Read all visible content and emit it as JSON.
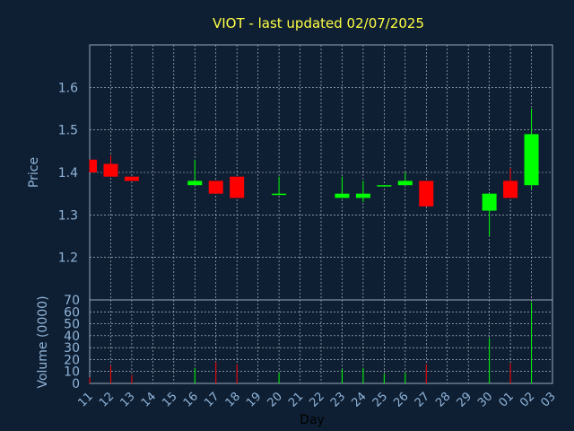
{
  "chart_data": [
    {
      "type": "candlestick",
      "title": "VIOT - last updated 02/07/2025",
      "xlabel": "Day",
      "ylabel": "Price",
      "ylim": [
        1.1,
        1.7
      ],
      "yticks": [
        "1.2",
        "1.3",
        "1.4",
        "1.5",
        "1.6"
      ],
      "grid": true,
      "candles": [
        {
          "day": "11",
          "open": 1.43,
          "high": 1.43,
          "low": 1.4,
          "close": 1.4
        },
        {
          "day": "12",
          "open": 1.42,
          "high": 1.44,
          "low": 1.39,
          "close": 1.39
        },
        {
          "day": "13",
          "open": 1.39,
          "high": 1.39,
          "low": 1.38,
          "close": 1.38
        },
        {
          "day": "16",
          "open": 1.37,
          "high": 1.43,
          "low": 1.37,
          "close": 1.38
        },
        {
          "day": "17",
          "open": 1.38,
          "high": 1.38,
          "low": 1.35,
          "close": 1.35
        },
        {
          "day": "18",
          "open": 1.39,
          "high": 1.39,
          "low": 1.34,
          "close": 1.34
        },
        {
          "day": "20",
          "open": 1.35,
          "high": 1.39,
          "low": 1.35,
          "close": 1.35
        },
        {
          "day": "23",
          "open": 1.34,
          "high": 1.39,
          "low": 1.34,
          "close": 1.35
        },
        {
          "day": "24",
          "open": 1.34,
          "high": 1.38,
          "low": 1.33,
          "close": 1.35
        },
        {
          "day": "25",
          "open": 1.37,
          "high": 1.37,
          "low": 1.37,
          "close": 1.37
        },
        {
          "day": "26",
          "open": 1.37,
          "high": 1.4,
          "low": 1.37,
          "close": 1.38
        },
        {
          "day": "27",
          "open": 1.38,
          "high": 1.38,
          "low": 1.32,
          "close": 1.32
        },
        {
          "day": "30",
          "open": 1.31,
          "high": 1.35,
          "low": 1.25,
          "close": 1.35
        },
        {
          "day": "01",
          "open": 1.38,
          "high": 1.41,
          "low": 1.34,
          "close": 1.34
        },
        {
          "day": "02",
          "open": 1.37,
          "high": 1.55,
          "low": 1.36,
          "close": 1.49
        }
      ]
    },
    {
      "type": "bar",
      "ylabel": "Volume (0000)",
      "ylim": [
        0,
        70
      ],
      "yticks": [
        "0",
        "10",
        "20",
        "30",
        "40",
        "50",
        "60",
        "70"
      ],
      "xticks": [
        "11",
        "12",
        "13",
        "14",
        "15",
        "16",
        "17",
        "18",
        "19",
        "20",
        "21",
        "22",
        "23",
        "24",
        "25",
        "26",
        "27",
        "28",
        "29",
        "30",
        "01",
        "02",
        "03"
      ],
      "bars": [
        {
          "day": "11",
          "value": 5,
          "direction": "down"
        },
        {
          "day": "12",
          "value": 15,
          "direction": "down"
        },
        {
          "day": "13",
          "value": 7,
          "direction": "down"
        },
        {
          "day": "16",
          "value": 13,
          "direction": "up"
        },
        {
          "day": "17",
          "value": 18,
          "direction": "down"
        },
        {
          "day": "18",
          "value": 16,
          "direction": "down"
        },
        {
          "day": "20",
          "value": 9,
          "direction": "up"
        },
        {
          "day": "23",
          "value": 12,
          "direction": "up"
        },
        {
          "day": "24",
          "value": 13,
          "direction": "up"
        },
        {
          "day": "25",
          "value": 8,
          "direction": "up"
        },
        {
          "day": "26",
          "value": 9,
          "direction": "up"
        },
        {
          "day": "27",
          "value": 16,
          "direction": "down"
        },
        {
          "day": "30",
          "value": 38,
          "direction": "up"
        },
        {
          "day": "01",
          "value": 17,
          "direction": "down"
        },
        {
          "day": "02",
          "value": 68,
          "direction": "up"
        }
      ]
    }
  ],
  "colors": {
    "background": "#0f1f33",
    "axis": "#9aaabb",
    "grid": "#c8d0dc",
    "tick_text": "#8fb4d9",
    "title": "#ffff44",
    "up": "#00ff00",
    "down": "#ff0000",
    "xlabel": "#000000"
  }
}
